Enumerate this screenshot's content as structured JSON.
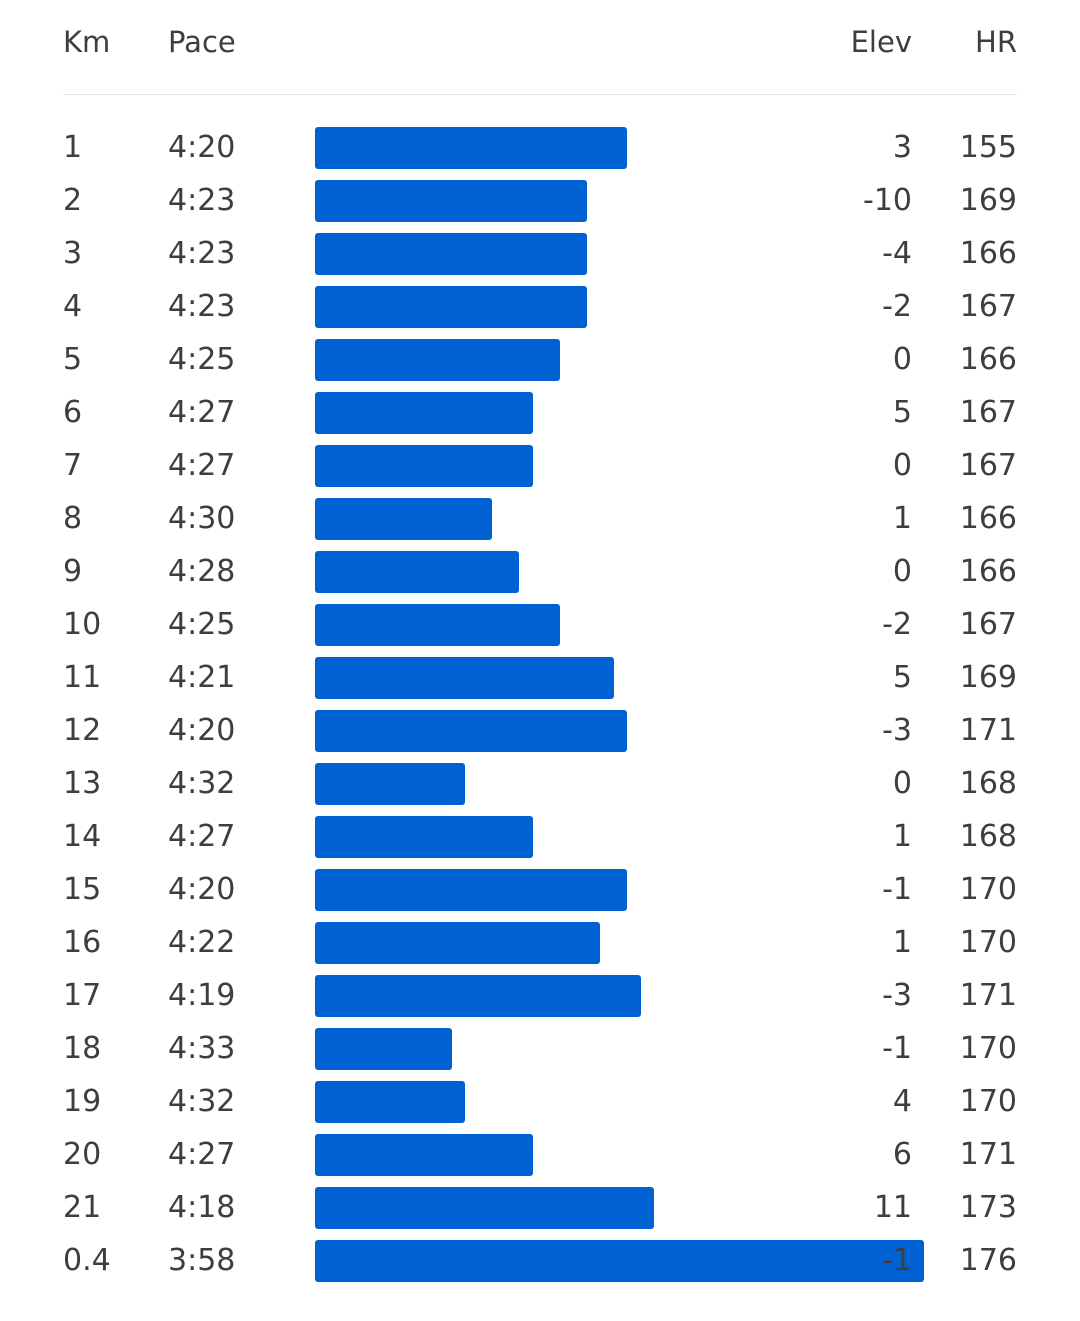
{
  "header": {
    "km": "Km",
    "pace": "Pace",
    "elev": "Elev",
    "hr": "HR"
  },
  "colors": {
    "bar": "#0061d3",
    "text": "#3d3d42",
    "divider": "#e2e2e6"
  },
  "chart_data": {
    "type": "bar",
    "orientation": "horizontal",
    "series": [
      {
        "name": "Pace",
        "values_seconds_per_km": [
          260,
          263,
          263,
          263,
          265,
          267,
          267,
          270,
          268,
          265,
          261,
          260,
          272,
          267,
          260,
          262,
          259,
          273,
          272,
          267,
          258,
          238
        ]
      }
    ],
    "rows": [
      {
        "km": "1",
        "pace": "4:20",
        "elev": "3",
        "hr": "155"
      },
      {
        "km": "2",
        "pace": "4:23",
        "elev": "-10",
        "hr": "169"
      },
      {
        "km": "3",
        "pace": "4:23",
        "elev": "-4",
        "hr": "166"
      },
      {
        "km": "4",
        "pace": "4:23",
        "elev": "-2",
        "hr": "167"
      },
      {
        "km": "5",
        "pace": "4:25",
        "elev": "0",
        "hr": "166"
      },
      {
        "km": "6",
        "pace": "4:27",
        "elev": "5",
        "hr": "167"
      },
      {
        "km": "7",
        "pace": "4:27",
        "elev": "0",
        "hr": "167"
      },
      {
        "km": "8",
        "pace": "4:30",
        "elev": "1",
        "hr": "166"
      },
      {
        "km": "9",
        "pace": "4:28",
        "elev": "0",
        "hr": "166"
      },
      {
        "km": "10",
        "pace": "4:25",
        "elev": "-2",
        "hr": "167"
      },
      {
        "km": "11",
        "pace": "4:21",
        "elev": "5",
        "hr": "169"
      },
      {
        "km": "12",
        "pace": "4:20",
        "elev": "-3",
        "hr": "171"
      },
      {
        "km": "13",
        "pace": "4:32",
        "elev": "0",
        "hr": "168"
      },
      {
        "km": "14",
        "pace": "4:27",
        "elev": "1",
        "hr": "168"
      },
      {
        "km": "15",
        "pace": "4:20",
        "elev": "-1",
        "hr": "170"
      },
      {
        "km": "16",
        "pace": "4:22",
        "elev": "1",
        "hr": "170"
      },
      {
        "km": "17",
        "pace": "4:19",
        "elev": "-3",
        "hr": "171"
      },
      {
        "km": "18",
        "pace": "4:33",
        "elev": "-1",
        "hr": "170"
      },
      {
        "km": "19",
        "pace": "4:32",
        "elev": "4",
        "hr": "170"
      },
      {
        "km": "20",
        "pace": "4:27",
        "elev": "6",
        "hr": "171"
      },
      {
        "km": "21",
        "pace": "4:18",
        "elev": "11",
        "hr": "173"
      },
      {
        "km": "0.4",
        "pace": "3:58",
        "elev": "-1",
        "hr": "176"
      }
    ]
  }
}
